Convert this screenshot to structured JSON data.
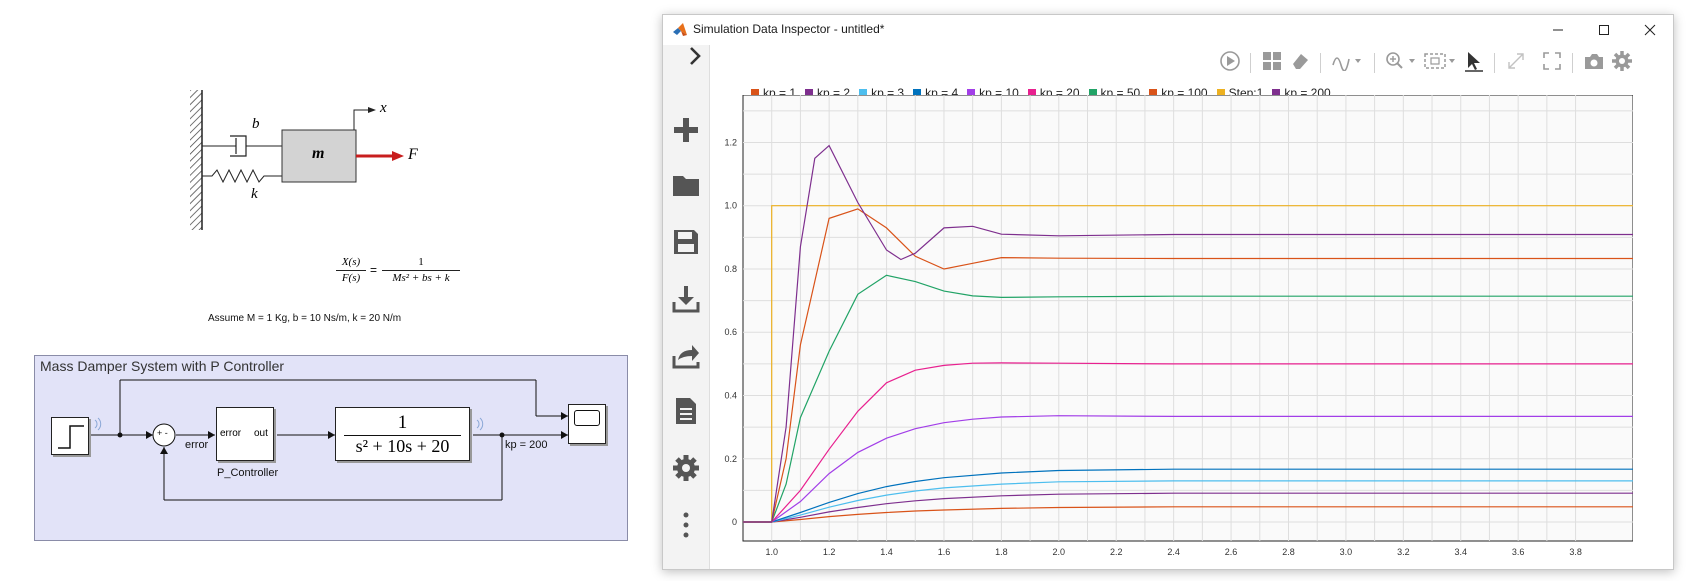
{
  "diagram": {
    "damper_label": "b",
    "spring_label": "k",
    "mass_label": "m",
    "force_label": "F",
    "position_label": "x",
    "tf_numerator": "X(s)",
    "tf_denominator": "F(s)",
    "tf_equals": "=",
    "tf_rhs_numerator": "1",
    "tf_rhs_denominator": "Ms² + bs + k",
    "assumption": "Assume M = 1 Kg, b = 10 Ns/m, k = 20 N/m"
  },
  "model": {
    "area_title": "Mass Damper System with P Controller",
    "sum_signs": "+ -",
    "error_signal": "error",
    "controller_in_port": "error",
    "controller_out_port": "out",
    "controller_name": "P_Controller",
    "plant_numerator": "1",
    "plant_denominator": "s² + 10s + 20",
    "output_signal": "kp = 200"
  },
  "window": {
    "title": "Simulation Data Inspector - untitled*",
    "minimize_icon": "minimize-icon",
    "maximize_icon": "maximize-icon",
    "close_icon": "close-icon"
  },
  "sidebar": {
    "expand_icon": "chevron-right-icon",
    "items": [
      "new",
      "open",
      "save",
      "import",
      "export",
      "report",
      "preferences",
      "more"
    ]
  },
  "toolbar": {
    "items": [
      "replay",
      "layout",
      "clear",
      "visualizations",
      "zoom",
      "fit",
      "cursor",
      "zoom-out-lock",
      "fullscreen",
      "snapshot",
      "settings"
    ]
  },
  "chart_data": {
    "type": "line",
    "title": "",
    "xlabel": "",
    "ylabel": "",
    "xlim": [
      0.9,
      4.0
    ],
    "ylim": [
      -0.06,
      1.35
    ],
    "xticks": [
      "1.0",
      "1.2",
      "1.4",
      "1.6",
      "1.8",
      "2.0",
      "2.2",
      "2.4",
      "2.6",
      "2.8",
      "3.0",
      "3.2",
      "3.4",
      "3.6",
      "3.8"
    ],
    "yticks": [
      "0",
      "0.2",
      "0.4",
      "0.6",
      "0.8",
      "1.0",
      "1.2"
    ],
    "grid": true,
    "legend_position": "top",
    "series": [
      {
        "name": "kp = 1",
        "color": "#d95319",
        "points": [
          [
            0.9,
            0
          ],
          [
            1.0,
            0
          ],
          [
            1.1,
            0.008
          ],
          [
            1.2,
            0.017
          ],
          [
            1.3,
            0.024
          ],
          [
            1.4,
            0.03
          ],
          [
            1.5,
            0.035
          ],
          [
            1.6,
            0.038
          ],
          [
            1.8,
            0.043
          ],
          [
            2.0,
            0.046
          ],
          [
            2.4,
            0.048
          ],
          [
            4.0,
            0.048
          ]
        ]
      },
      {
        "name": "kp = 2",
        "color": "#7e2f8e",
        "points": [
          [
            0.9,
            0
          ],
          [
            1.0,
            0
          ],
          [
            1.1,
            0.015
          ],
          [
            1.2,
            0.032
          ],
          [
            1.3,
            0.046
          ],
          [
            1.4,
            0.058
          ],
          [
            1.5,
            0.067
          ],
          [
            1.6,
            0.074
          ],
          [
            1.8,
            0.083
          ],
          [
            2.0,
            0.088
          ],
          [
            2.4,
            0.091
          ],
          [
            4.0,
            0.091
          ]
        ]
      },
      {
        "name": "kp = 3",
        "color": "#4dbeee",
        "points": [
          [
            0.9,
            0
          ],
          [
            1.0,
            0
          ],
          [
            1.1,
            0.022
          ],
          [
            1.2,
            0.047
          ],
          [
            1.3,
            0.068
          ],
          [
            1.4,
            0.085
          ],
          [
            1.5,
            0.098
          ],
          [
            1.6,
            0.108
          ],
          [
            1.8,
            0.12
          ],
          [
            2.0,
            0.127
          ],
          [
            2.4,
            0.13
          ],
          [
            4.0,
            0.13
          ]
        ]
      },
      {
        "name": "kp = 4",
        "color": "#0072bd",
        "points": [
          [
            0.9,
            0
          ],
          [
            1.0,
            0
          ],
          [
            1.1,
            0.03
          ],
          [
            1.2,
            0.062
          ],
          [
            1.3,
            0.09
          ],
          [
            1.4,
            0.112
          ],
          [
            1.5,
            0.128
          ],
          [
            1.6,
            0.14
          ],
          [
            1.8,
            0.155
          ],
          [
            2.0,
            0.163
          ],
          [
            2.4,
            0.167
          ],
          [
            4.0,
            0.167
          ]
        ]
      },
      {
        "name": "kp = 10",
        "color": "#a23ee8",
        "points": [
          [
            0.9,
            0
          ],
          [
            1.0,
            0
          ],
          [
            1.1,
            0.065
          ],
          [
            1.2,
            0.153
          ],
          [
            1.3,
            0.22
          ],
          [
            1.4,
            0.265
          ],
          [
            1.5,
            0.295
          ],
          [
            1.6,
            0.314
          ],
          [
            1.7,
            0.325
          ],
          [
            1.8,
            0.332
          ],
          [
            2.0,
            0.336
          ],
          [
            2.4,
            0.334
          ],
          [
            4.0,
            0.334
          ]
        ]
      },
      {
        "name": "kp = 20",
        "color": "#e8208f",
        "points": [
          [
            0.9,
            0
          ],
          [
            1.0,
            0
          ],
          [
            1.1,
            0.1
          ],
          [
            1.2,
            0.23
          ],
          [
            1.3,
            0.35
          ],
          [
            1.4,
            0.44
          ],
          [
            1.5,
            0.48
          ],
          [
            1.6,
            0.495
          ],
          [
            1.7,
            0.502
          ],
          [
            1.8,
            0.503
          ],
          [
            2.0,
            0.502
          ],
          [
            2.4,
            0.5
          ],
          [
            4.0,
            0.5
          ]
        ]
      },
      {
        "name": "kp = 50",
        "color": "#21a366",
        "points": [
          [
            0.9,
            0
          ],
          [
            1.0,
            0
          ],
          [
            1.05,
            0.12
          ],
          [
            1.1,
            0.33
          ],
          [
            1.2,
            0.54
          ],
          [
            1.3,
            0.72
          ],
          [
            1.4,
            0.78
          ],
          [
            1.5,
            0.76
          ],
          [
            1.6,
            0.73
          ],
          [
            1.7,
            0.715
          ],
          [
            1.8,
            0.71
          ],
          [
            2.0,
            0.712
          ],
          [
            2.4,
            0.714
          ],
          [
            4.0,
            0.714
          ]
        ]
      },
      {
        "name": "kp = 100",
        "color": "#d95319",
        "points": [
          [
            0.9,
            0
          ],
          [
            1.0,
            0
          ],
          [
            1.05,
            0.2
          ],
          [
            1.1,
            0.56
          ],
          [
            1.2,
            0.96
          ],
          [
            1.3,
            0.99
          ],
          [
            1.4,
            0.93
          ],
          [
            1.5,
            0.84
          ],
          [
            1.6,
            0.8
          ],
          [
            1.7,
            0.818
          ],
          [
            1.8,
            0.836
          ],
          [
            2.0,
            0.834
          ],
          [
            2.4,
            0.833
          ],
          [
            4.0,
            0.833
          ]
        ]
      },
      {
        "name": "Step:1",
        "color": "#edb120",
        "points": [
          [
            0.9,
            0
          ],
          [
            1.0,
            0
          ],
          [
            1.0,
            1.0
          ],
          [
            4.0,
            1.0
          ]
        ]
      },
      {
        "name": "kp = 200",
        "color": "#7e2f8e",
        "points": [
          [
            0.9,
            0
          ],
          [
            1.0,
            0
          ],
          [
            1.05,
            0.3
          ],
          [
            1.1,
            0.87
          ],
          [
            1.15,
            1.15
          ],
          [
            1.2,
            1.19
          ],
          [
            1.3,
            1.01
          ],
          [
            1.4,
            0.86
          ],
          [
            1.45,
            0.83
          ],
          [
            1.5,
            0.85
          ],
          [
            1.6,
            0.93
          ],
          [
            1.7,
            0.935
          ],
          [
            1.8,
            0.91
          ],
          [
            2.0,
            0.905
          ],
          [
            2.4,
            0.909
          ],
          [
            4.0,
            0.909
          ]
        ]
      }
    ]
  }
}
